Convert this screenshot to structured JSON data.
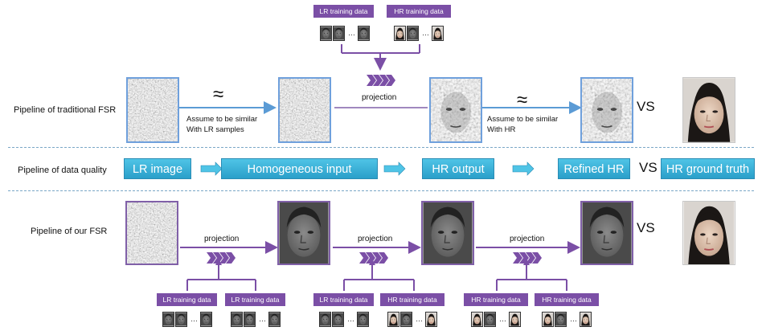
{
  "row_labels": {
    "traditional": "Pipeline of traditional FSR",
    "quality": "Pipeline of data  quality",
    "ours": "Pipeline of our FSR"
  },
  "tags": {
    "lr_training": "LR training data",
    "hr_training": "HR training data"
  },
  "thumbnail_ellipsis": "…",
  "vs": "VS",
  "approx": "≈",
  "projection": "projection",
  "notes": {
    "similar_lr": "Assume to be similar\nWith LR samples",
    "similar_hr": "Assume to be similar\nWith HR"
  },
  "quality_pipeline": [
    "LR  image",
    "Homogeneous input",
    "HR output",
    "Refined HR",
    "HR ground truth"
  ],
  "colors": {
    "accent_purple": "#7b4fa6",
    "arrow_blue": "#5b9bd5",
    "box_cyan": "#3cb4dc"
  }
}
